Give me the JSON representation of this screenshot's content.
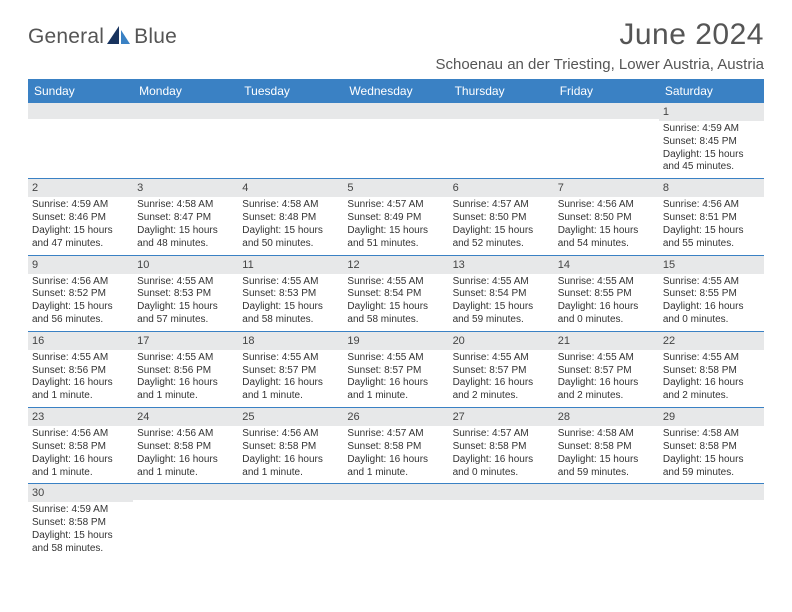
{
  "brand": {
    "part1": "General",
    "part2": "Blue"
  },
  "title": "June 2024",
  "location": "Schoenau an der Triesting, Lower Austria, Austria",
  "colors": {
    "header_bg": "#3a81c4",
    "header_text": "#ffffff",
    "daynum_bg": "#e7e8e9",
    "cell_border": "#3a81c4",
    "text": "#333333",
    "title_text": "#555555"
  },
  "weekdays": [
    "Sunday",
    "Monday",
    "Tuesday",
    "Wednesday",
    "Thursday",
    "Friday",
    "Saturday"
  ],
  "weeks": [
    [
      null,
      null,
      null,
      null,
      null,
      null,
      {
        "n": "1",
        "sunrise": "Sunrise: 4:59 AM",
        "sunset": "Sunset: 8:45 PM",
        "day1": "Daylight: 15 hours",
        "day2": "and 45 minutes."
      }
    ],
    [
      {
        "n": "2",
        "sunrise": "Sunrise: 4:59 AM",
        "sunset": "Sunset: 8:46 PM",
        "day1": "Daylight: 15 hours",
        "day2": "and 47 minutes."
      },
      {
        "n": "3",
        "sunrise": "Sunrise: 4:58 AM",
        "sunset": "Sunset: 8:47 PM",
        "day1": "Daylight: 15 hours",
        "day2": "and 48 minutes."
      },
      {
        "n": "4",
        "sunrise": "Sunrise: 4:58 AM",
        "sunset": "Sunset: 8:48 PM",
        "day1": "Daylight: 15 hours",
        "day2": "and 50 minutes."
      },
      {
        "n": "5",
        "sunrise": "Sunrise: 4:57 AM",
        "sunset": "Sunset: 8:49 PM",
        "day1": "Daylight: 15 hours",
        "day2": "and 51 minutes."
      },
      {
        "n": "6",
        "sunrise": "Sunrise: 4:57 AM",
        "sunset": "Sunset: 8:50 PM",
        "day1": "Daylight: 15 hours",
        "day2": "and 52 minutes."
      },
      {
        "n": "7",
        "sunrise": "Sunrise: 4:56 AM",
        "sunset": "Sunset: 8:50 PM",
        "day1": "Daylight: 15 hours",
        "day2": "and 54 minutes."
      },
      {
        "n": "8",
        "sunrise": "Sunrise: 4:56 AM",
        "sunset": "Sunset: 8:51 PM",
        "day1": "Daylight: 15 hours",
        "day2": "and 55 minutes."
      }
    ],
    [
      {
        "n": "9",
        "sunrise": "Sunrise: 4:56 AM",
        "sunset": "Sunset: 8:52 PM",
        "day1": "Daylight: 15 hours",
        "day2": "and 56 minutes."
      },
      {
        "n": "10",
        "sunrise": "Sunrise: 4:55 AM",
        "sunset": "Sunset: 8:53 PM",
        "day1": "Daylight: 15 hours",
        "day2": "and 57 minutes."
      },
      {
        "n": "11",
        "sunrise": "Sunrise: 4:55 AM",
        "sunset": "Sunset: 8:53 PM",
        "day1": "Daylight: 15 hours",
        "day2": "and 58 minutes."
      },
      {
        "n": "12",
        "sunrise": "Sunrise: 4:55 AM",
        "sunset": "Sunset: 8:54 PM",
        "day1": "Daylight: 15 hours",
        "day2": "and 58 minutes."
      },
      {
        "n": "13",
        "sunrise": "Sunrise: 4:55 AM",
        "sunset": "Sunset: 8:54 PM",
        "day1": "Daylight: 15 hours",
        "day2": "and 59 minutes."
      },
      {
        "n": "14",
        "sunrise": "Sunrise: 4:55 AM",
        "sunset": "Sunset: 8:55 PM",
        "day1": "Daylight: 16 hours",
        "day2": "and 0 minutes."
      },
      {
        "n": "15",
        "sunrise": "Sunrise: 4:55 AM",
        "sunset": "Sunset: 8:55 PM",
        "day1": "Daylight: 16 hours",
        "day2": "and 0 minutes."
      }
    ],
    [
      {
        "n": "16",
        "sunrise": "Sunrise: 4:55 AM",
        "sunset": "Sunset: 8:56 PM",
        "day1": "Daylight: 16 hours",
        "day2": "and 1 minute."
      },
      {
        "n": "17",
        "sunrise": "Sunrise: 4:55 AM",
        "sunset": "Sunset: 8:56 PM",
        "day1": "Daylight: 16 hours",
        "day2": "and 1 minute."
      },
      {
        "n": "18",
        "sunrise": "Sunrise: 4:55 AM",
        "sunset": "Sunset: 8:57 PM",
        "day1": "Daylight: 16 hours",
        "day2": "and 1 minute."
      },
      {
        "n": "19",
        "sunrise": "Sunrise: 4:55 AM",
        "sunset": "Sunset: 8:57 PM",
        "day1": "Daylight: 16 hours",
        "day2": "and 1 minute."
      },
      {
        "n": "20",
        "sunrise": "Sunrise: 4:55 AM",
        "sunset": "Sunset: 8:57 PM",
        "day1": "Daylight: 16 hours",
        "day2": "and 2 minutes."
      },
      {
        "n": "21",
        "sunrise": "Sunrise: 4:55 AM",
        "sunset": "Sunset: 8:57 PM",
        "day1": "Daylight: 16 hours",
        "day2": "and 2 minutes."
      },
      {
        "n": "22",
        "sunrise": "Sunrise: 4:55 AM",
        "sunset": "Sunset: 8:58 PM",
        "day1": "Daylight: 16 hours",
        "day2": "and 2 minutes."
      }
    ],
    [
      {
        "n": "23",
        "sunrise": "Sunrise: 4:56 AM",
        "sunset": "Sunset: 8:58 PM",
        "day1": "Daylight: 16 hours",
        "day2": "and 1 minute."
      },
      {
        "n": "24",
        "sunrise": "Sunrise: 4:56 AM",
        "sunset": "Sunset: 8:58 PM",
        "day1": "Daylight: 16 hours",
        "day2": "and 1 minute."
      },
      {
        "n": "25",
        "sunrise": "Sunrise: 4:56 AM",
        "sunset": "Sunset: 8:58 PM",
        "day1": "Daylight: 16 hours",
        "day2": "and 1 minute."
      },
      {
        "n": "26",
        "sunrise": "Sunrise: 4:57 AM",
        "sunset": "Sunset: 8:58 PM",
        "day1": "Daylight: 16 hours",
        "day2": "and 1 minute."
      },
      {
        "n": "27",
        "sunrise": "Sunrise: 4:57 AM",
        "sunset": "Sunset: 8:58 PM",
        "day1": "Daylight: 16 hours",
        "day2": "and 0 minutes."
      },
      {
        "n": "28",
        "sunrise": "Sunrise: 4:58 AM",
        "sunset": "Sunset: 8:58 PM",
        "day1": "Daylight: 15 hours",
        "day2": "and 59 minutes."
      },
      {
        "n": "29",
        "sunrise": "Sunrise: 4:58 AM",
        "sunset": "Sunset: 8:58 PM",
        "day1": "Daylight: 15 hours",
        "day2": "and 59 minutes."
      }
    ],
    [
      {
        "n": "30",
        "sunrise": "Sunrise: 4:59 AM",
        "sunset": "Sunset: 8:58 PM",
        "day1": "Daylight: 15 hours",
        "day2": "and 58 minutes."
      },
      null,
      null,
      null,
      null,
      null,
      null
    ]
  ]
}
